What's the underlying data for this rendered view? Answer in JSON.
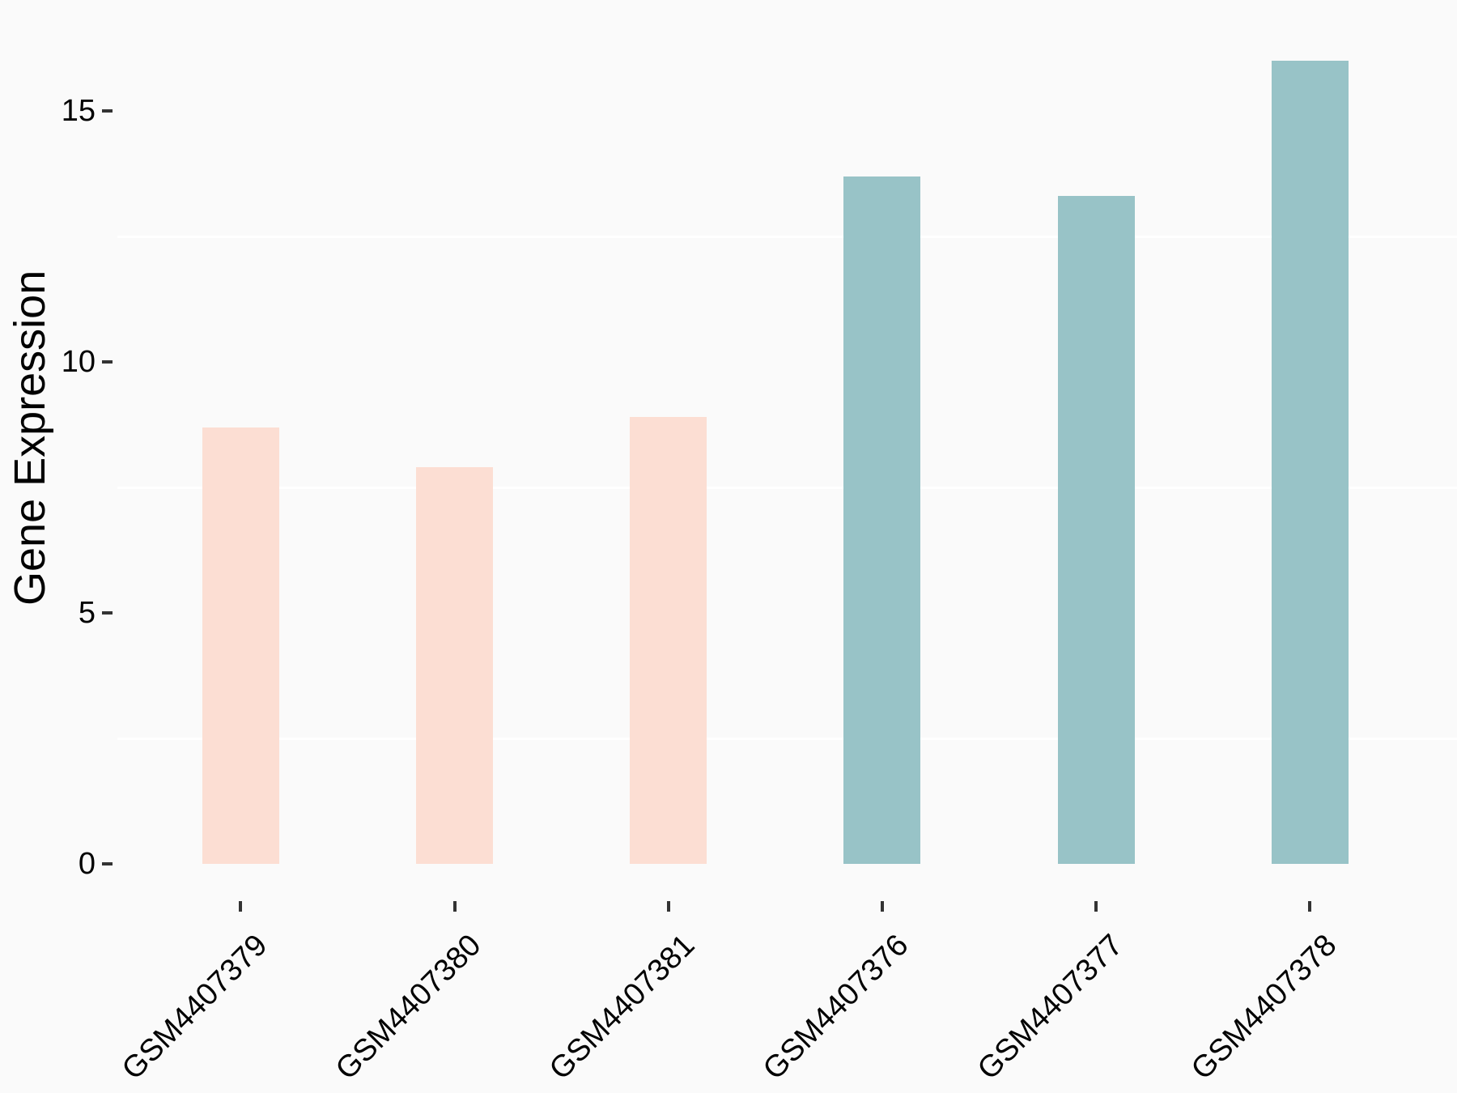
{
  "chart_data": {
    "type": "bar",
    "title": "",
    "xlabel": "",
    "ylabel": "Gene Expression",
    "categories": [
      "GSM4407379",
      "GSM4407380",
      "GSM4407381",
      "GSM4407376",
      "GSM4407377",
      "GSM4407378"
    ],
    "values": [
      8.7,
      7.9,
      8.9,
      13.7,
      13.3,
      16.0
    ],
    "bar_colors": [
      "#FCDED3",
      "#FCDED3",
      "#FCDED3",
      "#98C3C7",
      "#98C3C7",
      "#98C3C7"
    ],
    "y_ticks": [
      0,
      5,
      10,
      15
    ],
    "y_minor_gridlines": [
      2.5,
      7.5,
      12.5
    ],
    "ylim": [
      0,
      16.9
    ],
    "grid": "minor-horizontal-only",
    "legend": "none",
    "colors": {
      "background": "#FAFAFA",
      "gridline": "#FFFFFF",
      "axis_text": "#000000",
      "tick_mark": "#333333"
    }
  }
}
